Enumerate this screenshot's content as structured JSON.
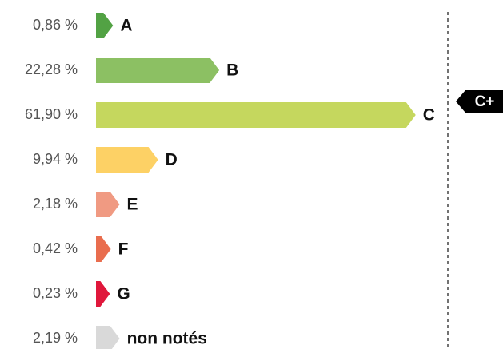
{
  "chart_data": {
    "type": "bar",
    "orientation": "horizontal",
    "categories": [
      "A",
      "B",
      "C",
      "D",
      "E",
      "F",
      "G",
      "non notés"
    ],
    "values": [
      0.86,
      22.28,
      61.9,
      9.94,
      2.18,
      0.42,
      0.23,
      2.19
    ],
    "value_labels": [
      "0,86 %",
      "22,28 %",
      "61,90 %",
      "9,94 %",
      "2,18 %",
      "0,42 %",
      "0,23 %",
      "2,19 %"
    ],
    "colors": [
      "#52a244",
      "#8cc063",
      "#c5d75e",
      "#fdd165",
      "#f09a82",
      "#e96d4e",
      "#e0173b",
      "#d9d9d9"
    ],
    "marker": {
      "label": "C+",
      "category": "C"
    }
  }
}
